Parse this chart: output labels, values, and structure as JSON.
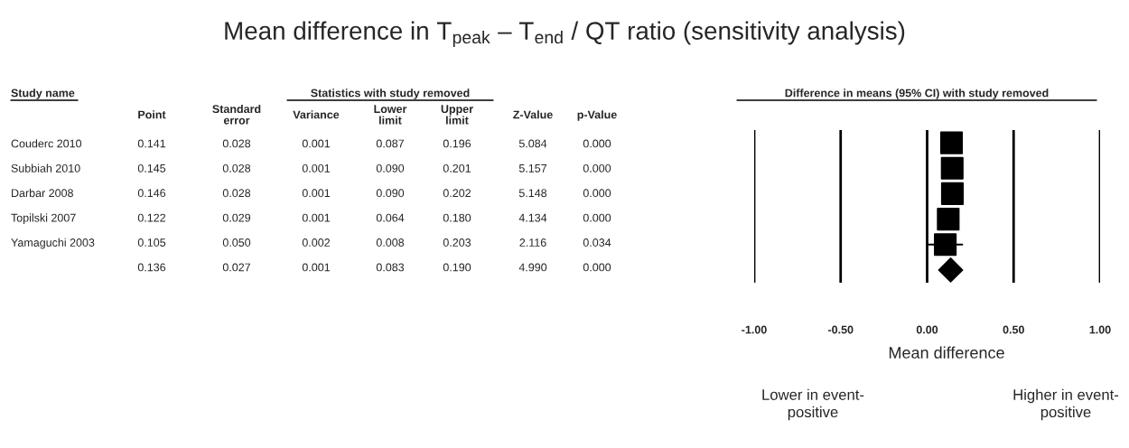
{
  "chart_data": [
    {
      "type": "other",
      "title": "Mean difference in T$_{peak}$ – T$_{end}$ / QT ratio (sensitivity analysis)",
      "subtitle": "Statistics with study removed",
      "ylabel": "Study name",
      "categories": [
        "Point",
        "Standard\nerror",
        "Variance",
        "Lower\nlimit",
        "Upper\nlimit",
        "Z-Value",
        "p-Value"
      ],
      "y_categories": [
        "Couderc 2010",
        "Subbiah 2010",
        "Darbar 2008",
        "Topilski 2007",
        "Yamaguchi 2003",
        null
      ],
      "cell_labels": [
        [
          "0.141",
          "0.028",
          "0.001",
          "0.087",
          "0.196",
          "5.084",
          "0.000"
        ],
        [
          "0.145",
          "0.028",
          "0.001",
          "0.090",
          "0.201",
          "5.157",
          "0.000"
        ],
        [
          "0.146",
          "0.028",
          "0.001",
          "0.090",
          "0.202",
          "5.148",
          "0.000"
        ],
        [
          "0.122",
          "0.029",
          "0.001",
          "0.064",
          "0.180",
          "4.134",
          "0.000"
        ],
        [
          "0.105",
          "0.050",
          "0.002",
          "0.008",
          "0.203",
          "2.116",
          "0.034"
        ],
        [
          "0.136",
          "0.027",
          "0.001",
          "0.083",
          "0.190",
          "4.990",
          "0.000"
        ]
      ]
    },
    {
      "type": "scatter",
      "orientation": "horizontal",
      "title": "Difference in means (95% CI) with study removed",
      "xlabel": "Mean difference",
      "categories": [
        null,
        null,
        null,
        null,
        null,
        null
      ],
      "series": [
        {
          "marker": "square",
          "color": "#000000",
          "values": [
            0.141,
            0.145,
            0.146,
            0.122,
            0.105,
            null
          ],
          "errors": [
            [
              0.087,
              0.196
            ],
            [
              0.09,
              0.201
            ],
            [
              0.09,
              0.202
            ],
            [
              0.064,
              0.18
            ],
            [
              0.008,
              0.203
            ],
            null
          ]
        },
        {
          "marker": "diamond",
          "color": "#000000",
          "values": [
            null,
            null,
            null,
            null,
            null,
            0.136
          ],
          "errors": [
            null,
            null,
            null,
            null,
            null,
            [
              0.083,
              0.19
            ]
          ]
        }
      ],
      "xlim": [
        -1,
        1
      ],
      "xticks": [
        {
          "value": -1,
          "label": "-1.00"
        },
        {
          "value": -0.5,
          "label": "-0.50"
        },
        {
          "value": 0,
          "label": "0.00"
        },
        {
          "value": 0.5,
          "label": "0.50"
        },
        {
          "value": 1,
          "label": "1.00"
        }
      ],
      "grid": "x",
      "tick_labels": "x",
      "annotations": [
        "Lower in event-\npositive",
        "Higher in event-\npositive"
      ]
    }
  ]
}
